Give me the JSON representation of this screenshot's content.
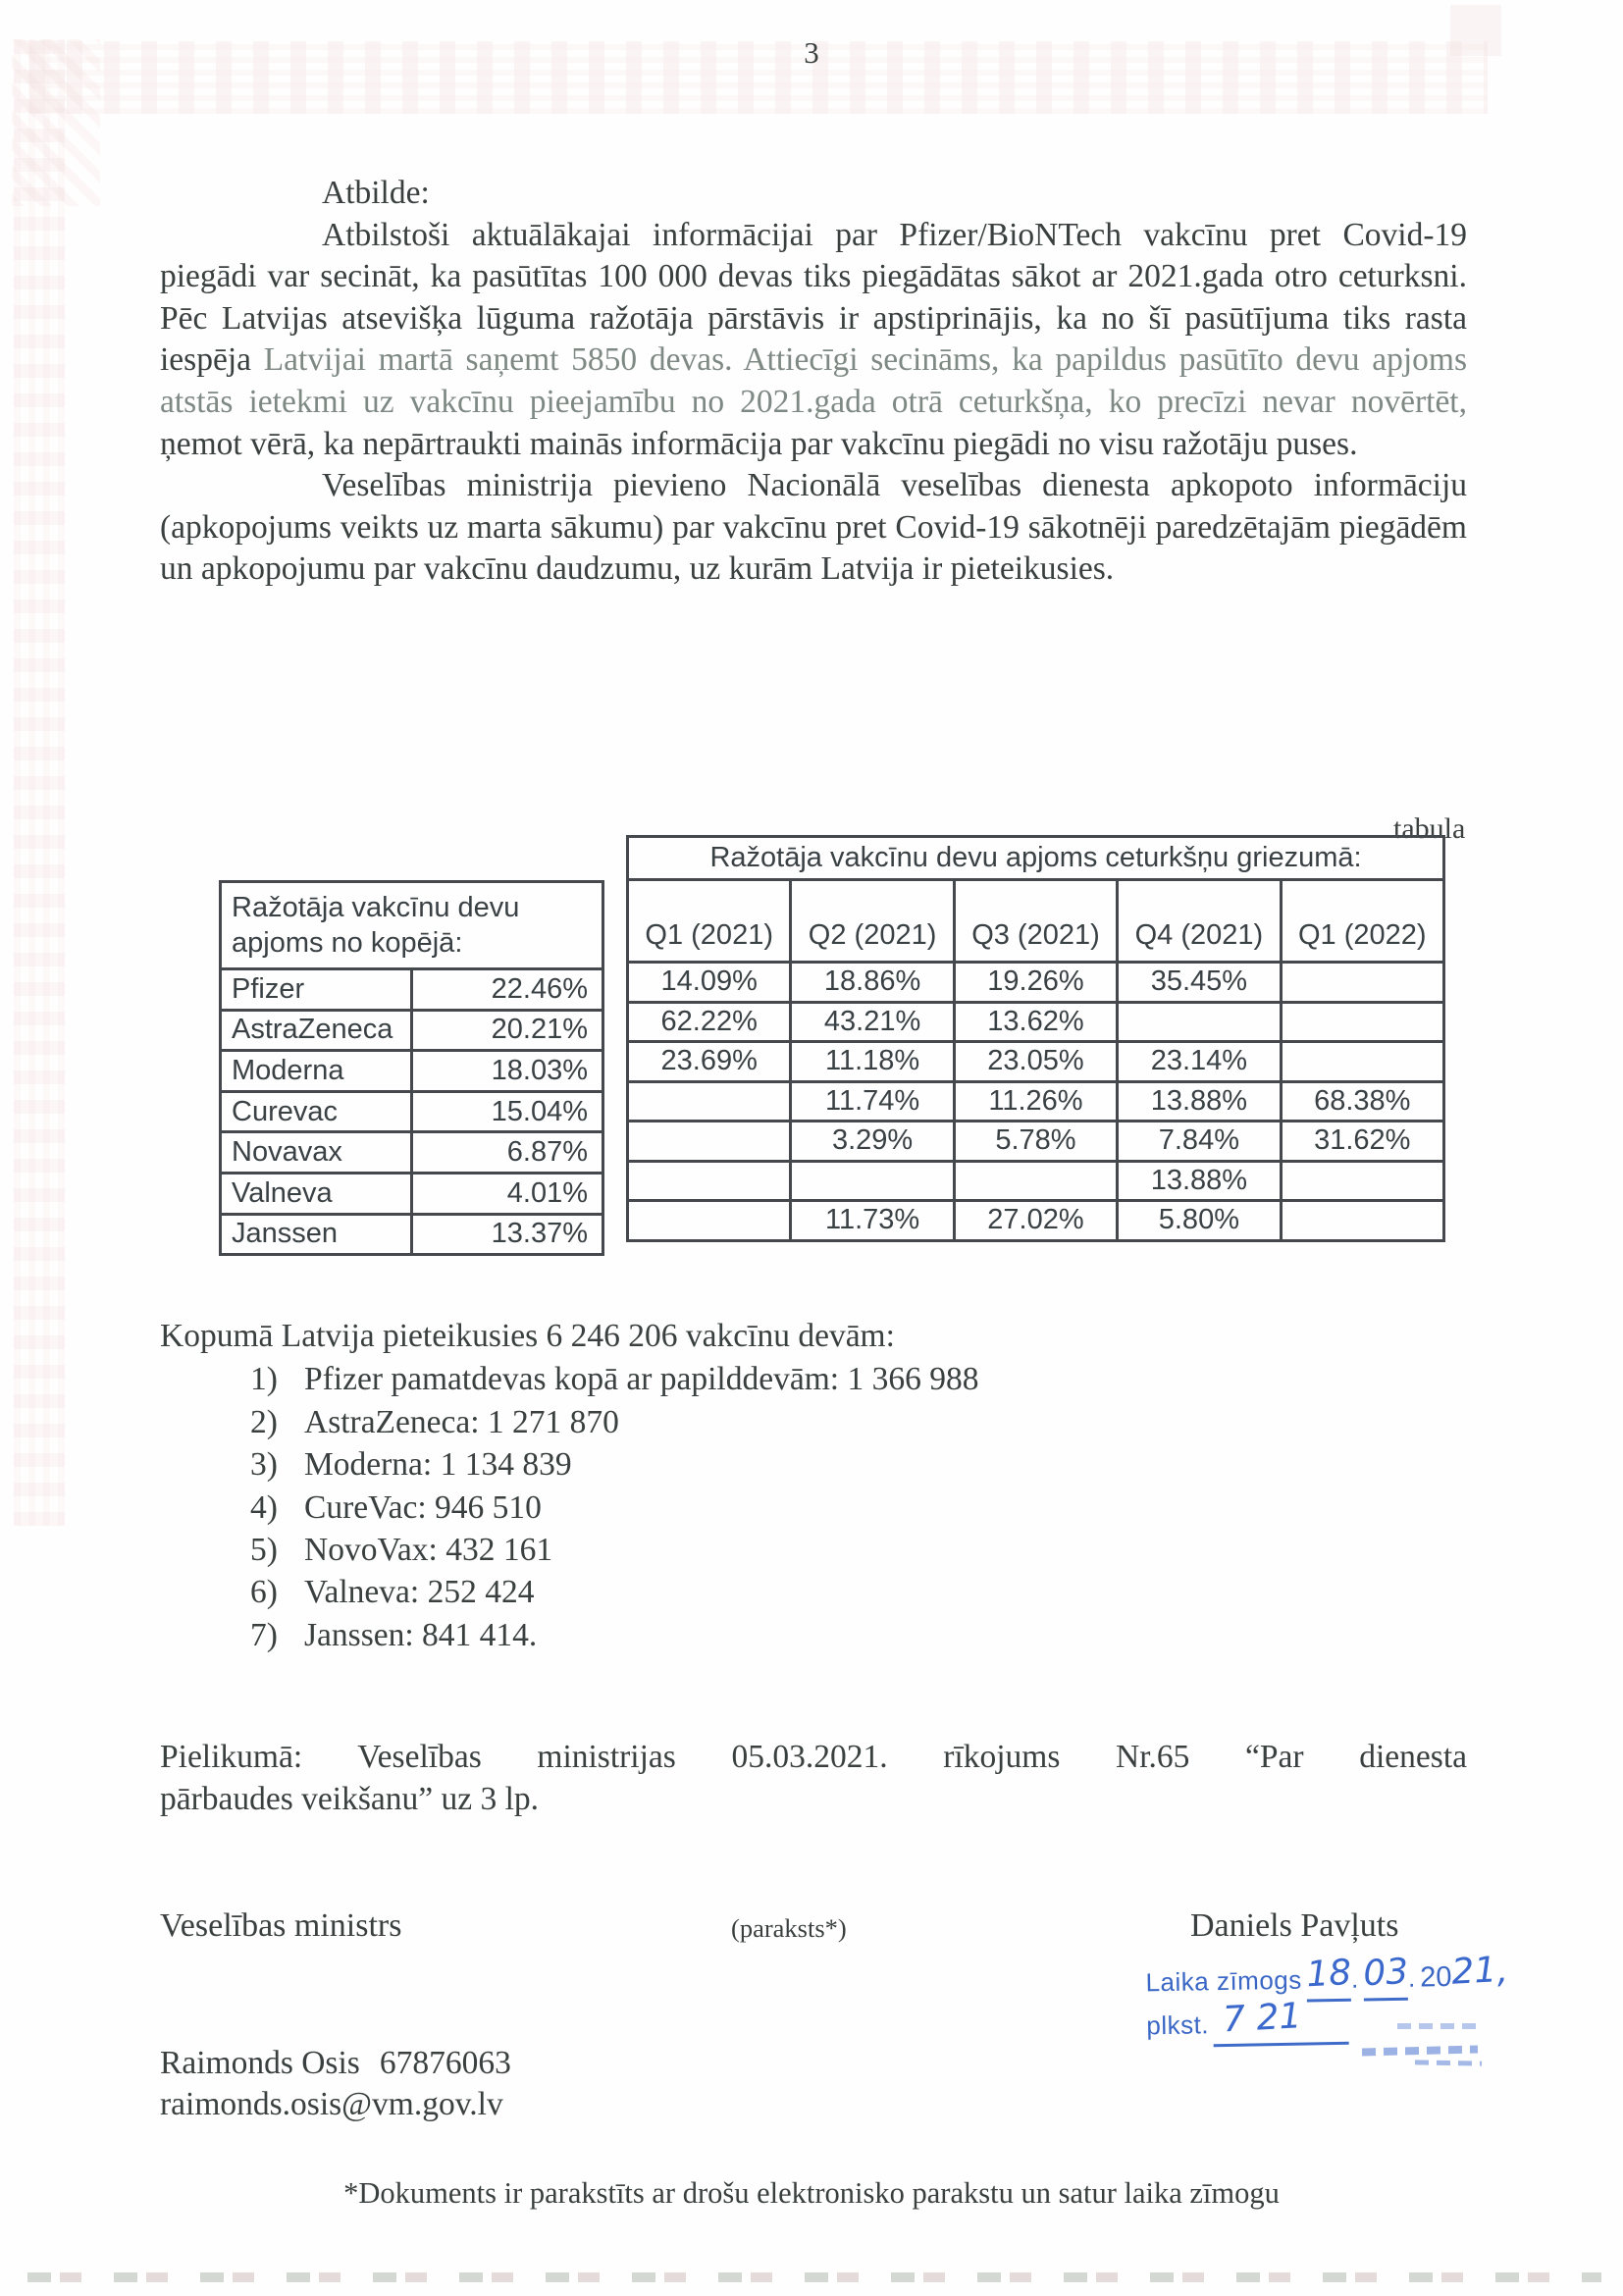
{
  "page": {
    "number": "3"
  },
  "answer": {
    "label": "Atbilde:",
    "p1a": "Atbilstoši aktuālākajai informācijai par Pfizer/BioNTech vakcīnu pret Covid-19 piegādi var secināt, ka pasūtītas 100 000 devas tiks piegādātas sākot ar 2021.gada otro ceturksni. Pēc Latvijas atsevišķa lūguma ražotāja pārstāvis ir apstiprinājis, ka no šī pasūtījuma tiks rasta iespēja",
    "p1b": "Latvijai martā saņemt 5850 devas. Attiecīgi secināms, ka papildus pasūtīto devu apjoms atstās ietekmi uz vakcīnu pieejamību no 2021.gada otrā ceturkšņa, ko precīzi nevar novērtēt,",
    "p1c": "ņemot vērā, ka nepārtraukti mainās informācija par vakcīnu piegādi no visu ražotāju puses.",
    "p2": "Veselības ministrija pievieno Nacionālā veselības dienesta apkopoto informāciju (apkopojums veikts uz marta sākumu) par vakcīnu pret Covid-19 sākotnēji paredzētajām piegādēm un apkopojumu par vakcīnu daudzumu, uz kurām Latvija ir pieteikusies."
  },
  "tabula_label": "tabula",
  "left_table": {
    "header_line1": "Ražotāja vakcīnu devu",
    "header_line2": "apjoms no kopējā:",
    "rows": [
      {
        "name": "Pfizer",
        "value": "22.46%"
      },
      {
        "name": "AstraZeneca",
        "value": "20.21%"
      },
      {
        "name": "Moderna",
        "value": "18.03%"
      },
      {
        "name": "Curevac",
        "value": "15.04%"
      },
      {
        "name": "Novavax",
        "value": "6.87%"
      },
      {
        "name": "Valneva",
        "value": "4.01%"
      },
      {
        "name": "Janssen",
        "value": "13.37%"
      }
    ]
  },
  "right_table": {
    "title": "Ražotāja vakcīnu devu apjoms ceturkšņu griezumā:",
    "columns": [
      "Q1 (2021)",
      "Q2 (2021)",
      "Q3 (2021)",
      "Q4 (2021)",
      "Q1 (2022)"
    ],
    "rows": [
      [
        "14.09%",
        "18.86%",
        "19.26%",
        "35.45%",
        ""
      ],
      [
        "62.22%",
        "43.21%",
        "13.62%",
        "",
        ""
      ],
      [
        "23.69%",
        "11.18%",
        "23.05%",
        "23.14%",
        ""
      ],
      [
        "",
        "11.74%",
        "11.26%",
        "13.88%",
        "68.38%"
      ],
      [
        "",
        "3.29%",
        "5.78%",
        "7.84%",
        "31.62%"
      ],
      [
        "",
        "",
        "",
        "13.88%",
        ""
      ],
      [
        "",
        "11.73%",
        "27.02%",
        "5.80%",
        ""
      ]
    ]
  },
  "totals": {
    "intro": "Kopumā Latvija pieteikusies 6 246 206 vakcīnu devām:",
    "items": [
      {
        "num": "1)",
        "text": "Pfizer pamatdevas kopā ar papilddevām: 1 366 988"
      },
      {
        "num": "2)",
        "text": "AstraZeneca: 1 271 870"
      },
      {
        "num": "3)",
        "text": "Moderna: 1 134 839"
      },
      {
        "num": "4)",
        "text": "CureVac: 946 510"
      },
      {
        "num": "5)",
        "text": "NovoVax: 432 161"
      },
      {
        "num": "6)",
        "text": "Valneva: 252 424"
      },
      {
        "num": "7)",
        "text": "Janssen: 841 414."
      }
    ]
  },
  "attachment": {
    "line1": "Pielikumā: Veselības ministrijas 05.03.2021. rīkojums Nr.65 “Par dienesta",
    "line2": "pārbaudes veikšanu” uz 3 lp."
  },
  "signature": {
    "position": "Veselības ministrs",
    "note": "(paraksts*)",
    "name": "Daniels Pavļuts"
  },
  "stamp": {
    "line1_label": "Laika zīmogs",
    "day": "18",
    "separator": ".",
    "month": "03",
    "year_printed": "20",
    "year_hw": "21",
    "comma": ",",
    "line2_label": "plkst.",
    "time": "7 21",
    "blue": "#3a67c6"
  },
  "contact": {
    "name": "Raimonds Osis",
    "phone": "67876063",
    "email": "raimonds.osis@vm.gov.lv"
  },
  "footer": "*Dokuments ir parakstīts ar drošu elektronisko parakstu un satur laika zīmogu"
}
